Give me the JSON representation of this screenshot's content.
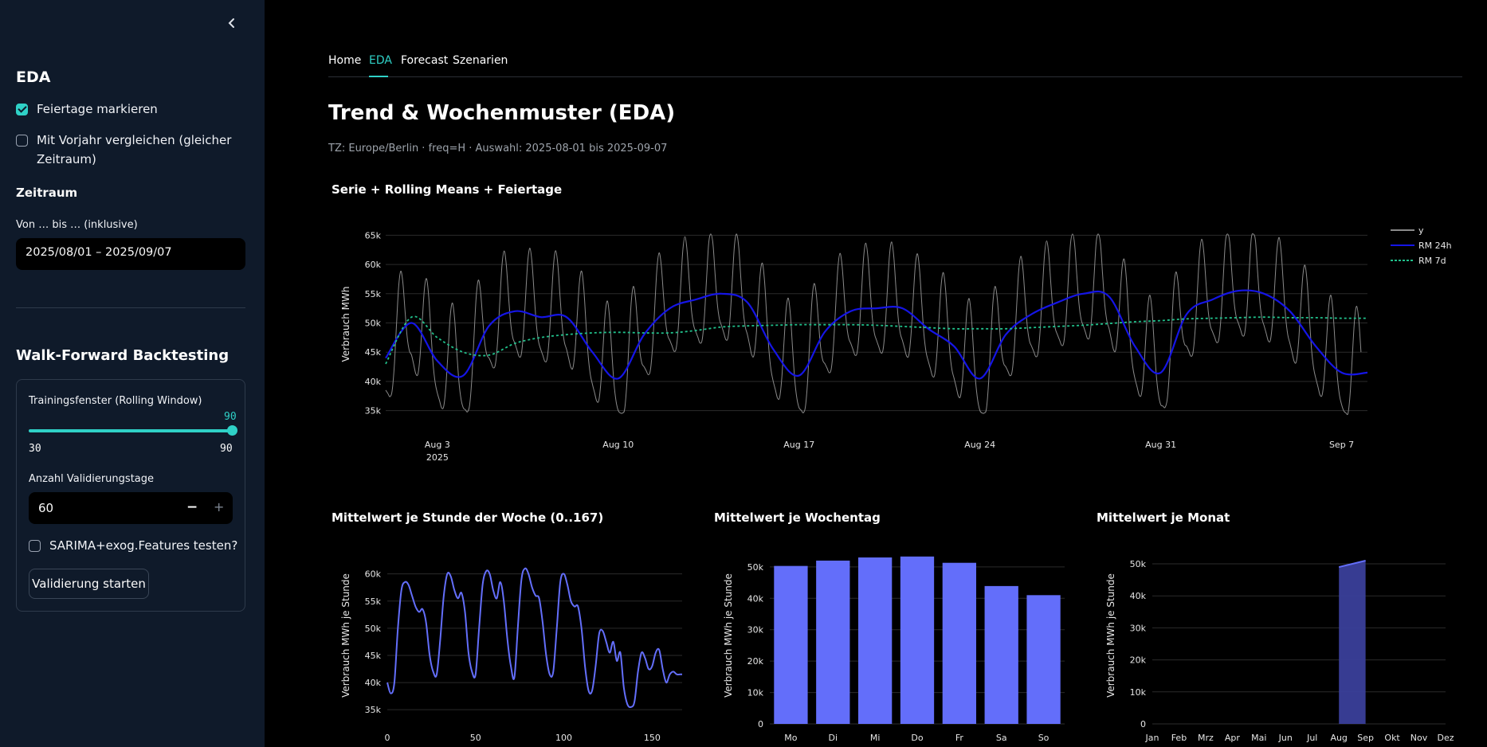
{
  "sidebar": {
    "collapse_icon": "chevron-left-icon",
    "eda_heading": "EDA",
    "holidays_label": "Feiertage markieren",
    "holidays_checked": true,
    "prev_year_label_1": "Mit Vorjahr vergleichen (gleicher",
    "prev_year_label_2": "Zeitraum)",
    "prev_year_checked": false,
    "period_heading": "Zeitraum",
    "date_range_label": "Von … bis … (inklusive)",
    "date_range_value": "2025/08/01 – 2025/09/07",
    "wf_heading": "Walk-Forward Backtesting",
    "train_window_label": "Trainingsfenster (Rolling Window)",
    "train_window_value": "90",
    "train_window_min": "30",
    "train_window_max": "90",
    "val_days_label": "Anzahl Validierungstage",
    "val_days_value": "60",
    "minus": "−",
    "plus": "+",
    "sarima_label": "SARIMA+exog.Features testen?",
    "sarima_checked": false,
    "start_button": "Validierung starten"
  },
  "tabs": [
    {
      "label": "Home"
    },
    {
      "label": "EDA"
    },
    {
      "label": "Forecast"
    },
    {
      "label": "Szenarien"
    }
  ],
  "active_tab": "EDA",
  "page_title": "Trend & Wochenmuster (EDA)",
  "caption": "TZ: Europe/Berlin · freq=H · Auswahl: 2025-08-01 bis 2025-09-07",
  "colors": {
    "accent": "#2fd1c7",
    "series_y": "#8a8a8a",
    "rm24": "#1515e6",
    "rm7": "#21c08b",
    "bars": "#636efa"
  },
  "chart_data": [
    {
      "type": "line",
      "title": "Serie + Rolling Means + Feiertage",
      "ylabel": "Verbrauch MWh",
      "ylim": [
        34000,
        66000
      ],
      "yticks": [
        35000,
        40000,
        45000,
        50000,
        55000,
        60000,
        65000
      ],
      "ytick_labels": [
        "35k",
        "40k",
        "45k",
        "50k",
        "55k",
        "60k",
        "65k"
      ],
      "xticks_day": [
        2,
        9,
        16,
        23,
        30,
        37
      ],
      "xtick_labels": [
        "Aug 3",
        "Aug 10",
        "Aug 17",
        "Aug 24",
        "Aug 31",
        "Sep 7"
      ],
      "xtick_sublabel": "2025",
      "x_range_days": [
        0,
        38
      ],
      "legend": [
        "y",
        "RM 24h",
        "RM 7d"
      ],
      "legend_position": "top-right",
      "series": [
        {
          "name": "RM 24h",
          "x_day": [
            0,
            1,
            2,
            3,
            4,
            5,
            6,
            7,
            8,
            9,
            10,
            11,
            12,
            13,
            14,
            15,
            16,
            17,
            18,
            19,
            20,
            21,
            22,
            23,
            24,
            25,
            26,
            27,
            28,
            29,
            30,
            31,
            32,
            33,
            34,
            35,
            36,
            37,
            38
          ],
          "values": [
            44000,
            50000,
            43500,
            41000,
            49500,
            52000,
            51000,
            51000,
            45000,
            40500,
            48000,
            52500,
            54000,
            55000,
            53500,
            45500,
            41000,
            48500,
            52000,
            52500,
            52500,
            49000,
            46000,
            40500,
            48000,
            51500,
            53500,
            55000,
            54500,
            46000,
            41500,
            51500,
            54000,
            55500,
            55000,
            52000,
            46000,
            41500,
            41500
          ]
        },
        {
          "name": "RM 7d",
          "x_day": [
            0,
            1,
            2,
            3,
            4,
            5,
            6,
            7,
            8,
            9,
            10,
            11,
            12,
            13,
            14,
            15,
            16,
            17,
            18,
            19,
            20,
            21,
            22,
            23,
            24,
            25,
            26,
            27,
            28,
            29,
            30,
            31,
            32,
            33,
            34,
            35,
            36,
            37,
            38
          ],
          "values": [
            43000,
            51000,
            47500,
            45000,
            44500,
            46500,
            47500,
            48000,
            48300,
            48400,
            48300,
            48300,
            48700,
            49300,
            49500,
            49600,
            49700,
            49700,
            49700,
            49600,
            49400,
            49200,
            49000,
            49000,
            49000,
            49200,
            49400,
            49600,
            49900,
            50200,
            50400,
            50700,
            50800,
            50900,
            51000,
            50900,
            50900,
            50800,
            50800
          ]
        }
      ]
    },
    {
      "type": "line",
      "title": "Mittelwert je Stunde der Woche (0..167)",
      "ylabel": "Verbrauch MWh je Stunde",
      "ylim": [
        34000,
        62000
      ],
      "yticks": [
        35000,
        40000,
        45000,
        50000,
        55000,
        60000
      ],
      "ytick_labels": [
        "35k",
        "40k",
        "45k",
        "50k",
        "55k",
        "60k"
      ],
      "xticks": [
        0,
        50,
        100,
        150
      ],
      "xlim": [
        0,
        167
      ],
      "series": [
        {
          "name": "mean",
          "x": [
            0,
            2,
            4,
            6,
            8,
            10,
            12,
            14,
            16,
            18,
            20,
            22,
            24,
            26,
            28,
            30,
            32,
            34,
            36,
            38,
            40,
            42,
            44,
            46,
            48,
            50,
            52,
            54,
            56,
            58,
            60,
            62,
            64,
            66,
            68,
            70,
            72,
            74,
            76,
            78,
            80,
            82,
            84,
            86,
            88,
            90,
            92,
            94,
            96,
            98,
            100,
            102,
            104,
            106,
            108,
            110,
            112,
            114,
            116,
            118,
            120,
            122,
            124,
            126,
            128,
            130,
            132,
            134,
            136,
            138,
            140,
            142,
            144,
            146,
            148,
            150,
            152,
            154,
            156,
            158,
            160,
            162,
            164,
            166,
            167
          ],
          "values": [
            40000,
            38000,
            40000,
            50000,
            57000,
            58500,
            58000,
            56000,
            54000,
            53000,
            53500,
            51000,
            45000,
            42000,
            41500,
            48000,
            56000,
            60000,
            59500,
            57000,
            55500,
            56500,
            53000,
            45500,
            42000,
            41500,
            50000,
            58000,
            60500,
            60000,
            57000,
            55500,
            58500,
            55000,
            48000,
            43000,
            41000,
            50500,
            59000,
            61000,
            60000,
            57500,
            56000,
            55500,
            51000,
            45000,
            41500,
            42000,
            50000,
            58500,
            60000,
            58000,
            55000,
            54000,
            54000,
            50000,
            43000,
            38500,
            38500,
            43000,
            49000,
            49500,
            47500,
            45500,
            47500,
            44000,
            45500,
            39000,
            36000,
            35500,
            36500,
            42000,
            45500,
            44500,
            42500,
            43000,
            45500,
            46000,
            42500,
            40000,
            41500,
            42000,
            41500,
            41500,
            41500
          ]
        }
      ]
    },
    {
      "type": "bar",
      "title": "Mittelwert je Wochentag",
      "ylabel": "Verbrauch MWh je Stunde",
      "ylim": [
        0,
        53000
      ],
      "yticks": [
        0,
        10000,
        20000,
        30000,
        40000,
        50000
      ],
      "ytick_labels": [
        "0",
        "10k",
        "20k",
        "30k",
        "40k",
        "50k"
      ],
      "categories": [
        "Mo",
        "Di",
        "Mi",
        "Do",
        "Fr",
        "Sa",
        "So"
      ],
      "values": [
        50300,
        52000,
        53000,
        53300,
        51300,
        43900,
        41000
      ]
    },
    {
      "type": "area",
      "title": "Mittelwert je Monat",
      "ylabel": "Verbrauch MWh je Stunde",
      "ylim": [
        0,
        52000
      ],
      "yticks": [
        0,
        10000,
        20000,
        30000,
        40000,
        50000
      ],
      "ytick_labels": [
        "0",
        "10k",
        "20k",
        "30k",
        "40k",
        "50k"
      ],
      "categories": [
        "Jan",
        "Feb",
        "Mrz",
        "Apr",
        "Mai",
        "Jun",
        "Jul",
        "Aug",
        "Sep",
        "Okt",
        "Nov",
        "Dez"
      ],
      "values": [
        0,
        0,
        0,
        0,
        0,
        0,
        0,
        49000,
        51000,
        0,
        0,
        0
      ]
    }
  ]
}
